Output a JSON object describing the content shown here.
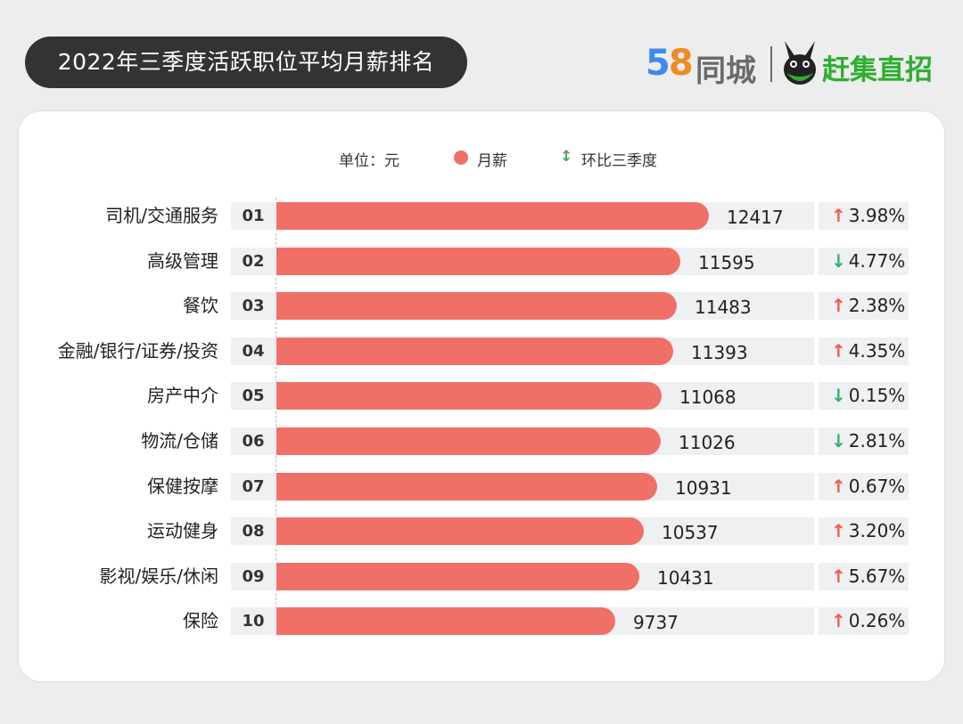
{
  "header": {
    "title": "2022年三季度活跃职位平均月薪排名",
    "brand_58": "58",
    "brand_tongcheng": "同城",
    "brand_ganji": "赶集直招"
  },
  "legend": {
    "unit": "单位：元",
    "series_label": "月薪",
    "change_label": "环比三季度",
    "up_arrow": "↑",
    "down_arrow": "↓"
  },
  "colors": {
    "bar": "#f07067",
    "up": "#f05a4f",
    "down": "#2db46b",
    "title_bg": "#333333"
  },
  "chart_data": {
    "type": "bar",
    "orientation": "horizontal",
    "title": "2022年三季度活跃职位平均月薪排名",
    "unit": "元",
    "categories": [
      "司机/交通服务",
      "高级管理",
      "餐饮",
      "金融/银行/证券/投资",
      "房产中介",
      "物流/仓储",
      "保健按摩",
      "运动健身",
      "影视/娱乐/休闲",
      "保险"
    ],
    "ranks": [
      "01",
      "02",
      "03",
      "04",
      "05",
      "06",
      "07",
      "08",
      "09",
      "10"
    ],
    "series": [
      {
        "name": "月薪",
        "values": [
          12417,
          11595,
          11483,
          11393,
          11068,
          11026,
          10931,
          10537,
          10431,
          9737
        ]
      }
    ],
    "change": {
      "name": "环比三季度",
      "values": [
        "3.98%",
        "4.77%",
        "2.38%",
        "4.35%",
        "0.15%",
        "2.81%",
        "0.67%",
        "3.20%",
        "5.67%",
        "0.26%"
      ],
      "direction": [
        "up",
        "down",
        "up",
        "up",
        "down",
        "down",
        "up",
        "up",
        "up",
        "up"
      ]
    },
    "xlim": [
      0,
      16000
    ],
    "legend_position": "top"
  }
}
